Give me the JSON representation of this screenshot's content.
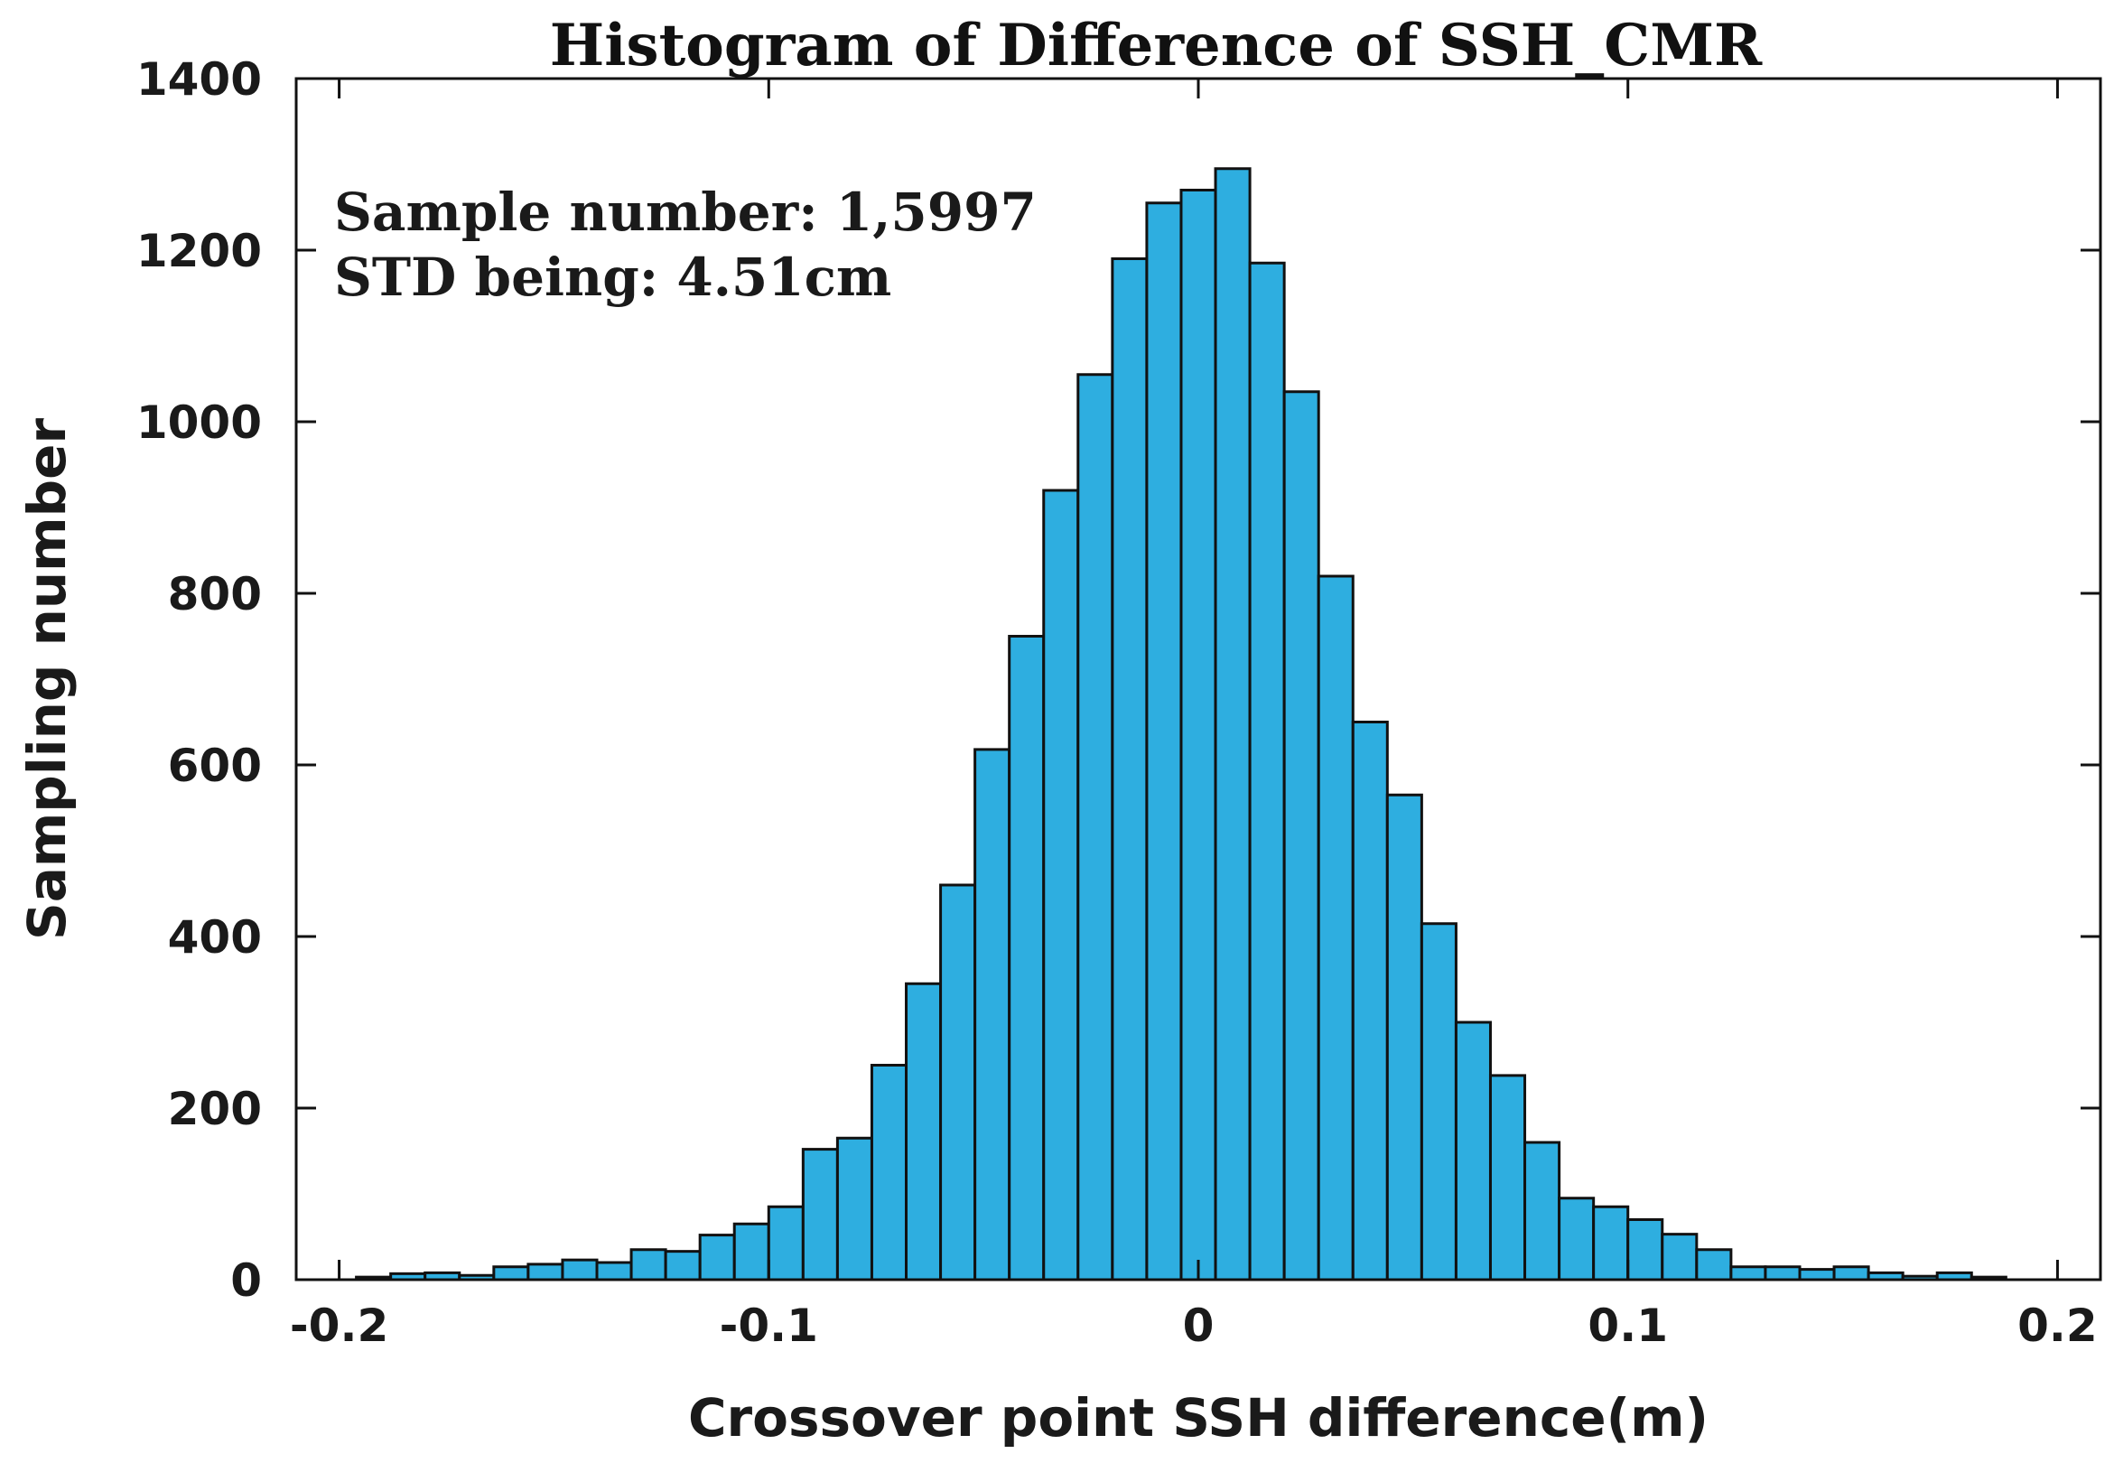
{
  "chart_data": {
    "type": "bar",
    "title": "Histogram of Difference of SSH_CMR",
    "xlabel": "Crossover point SSH difference(m)",
    "ylabel": "Sampling number",
    "xlim": [
      -0.21,
      0.21
    ],
    "ylim": [
      0,
      1400
    ],
    "xticks": [
      -0.2,
      -0.1,
      0,
      0.1,
      0.2
    ],
    "xtick_labels": [
      "-0.2",
      "-0.1",
      "0",
      "0.1",
      "0.2"
    ],
    "yticks": [
      0,
      200,
      400,
      600,
      800,
      1000,
      1200,
      1400
    ],
    "ytick_labels": [
      "0",
      "200",
      "400",
      "600",
      "800",
      "1000",
      "1200",
      "1400"
    ],
    "bin_width": 0.008,
    "bin_start": -0.196,
    "values": [
      3,
      7,
      8,
      5,
      15,
      18,
      23,
      20,
      35,
      33,
      52,
      65,
      85,
      152,
      165,
      250,
      345,
      460,
      618,
      750,
      920,
      1055,
      1190,
      1255,
      1270,
      1295,
      1185,
      1035,
      820,
      650,
      565,
      415,
      300,
      238,
      160,
      95,
      85,
      70,
      53,
      35,
      15,
      15,
      12,
      15,
      8,
      4,
      8,
      3
    ],
    "annotations": [
      "Sample number: 1,5997",
      "STD being: 4.51cm"
    ],
    "grid": false,
    "bar_color": "#2eaee0",
    "edge_color": "#111111"
  }
}
